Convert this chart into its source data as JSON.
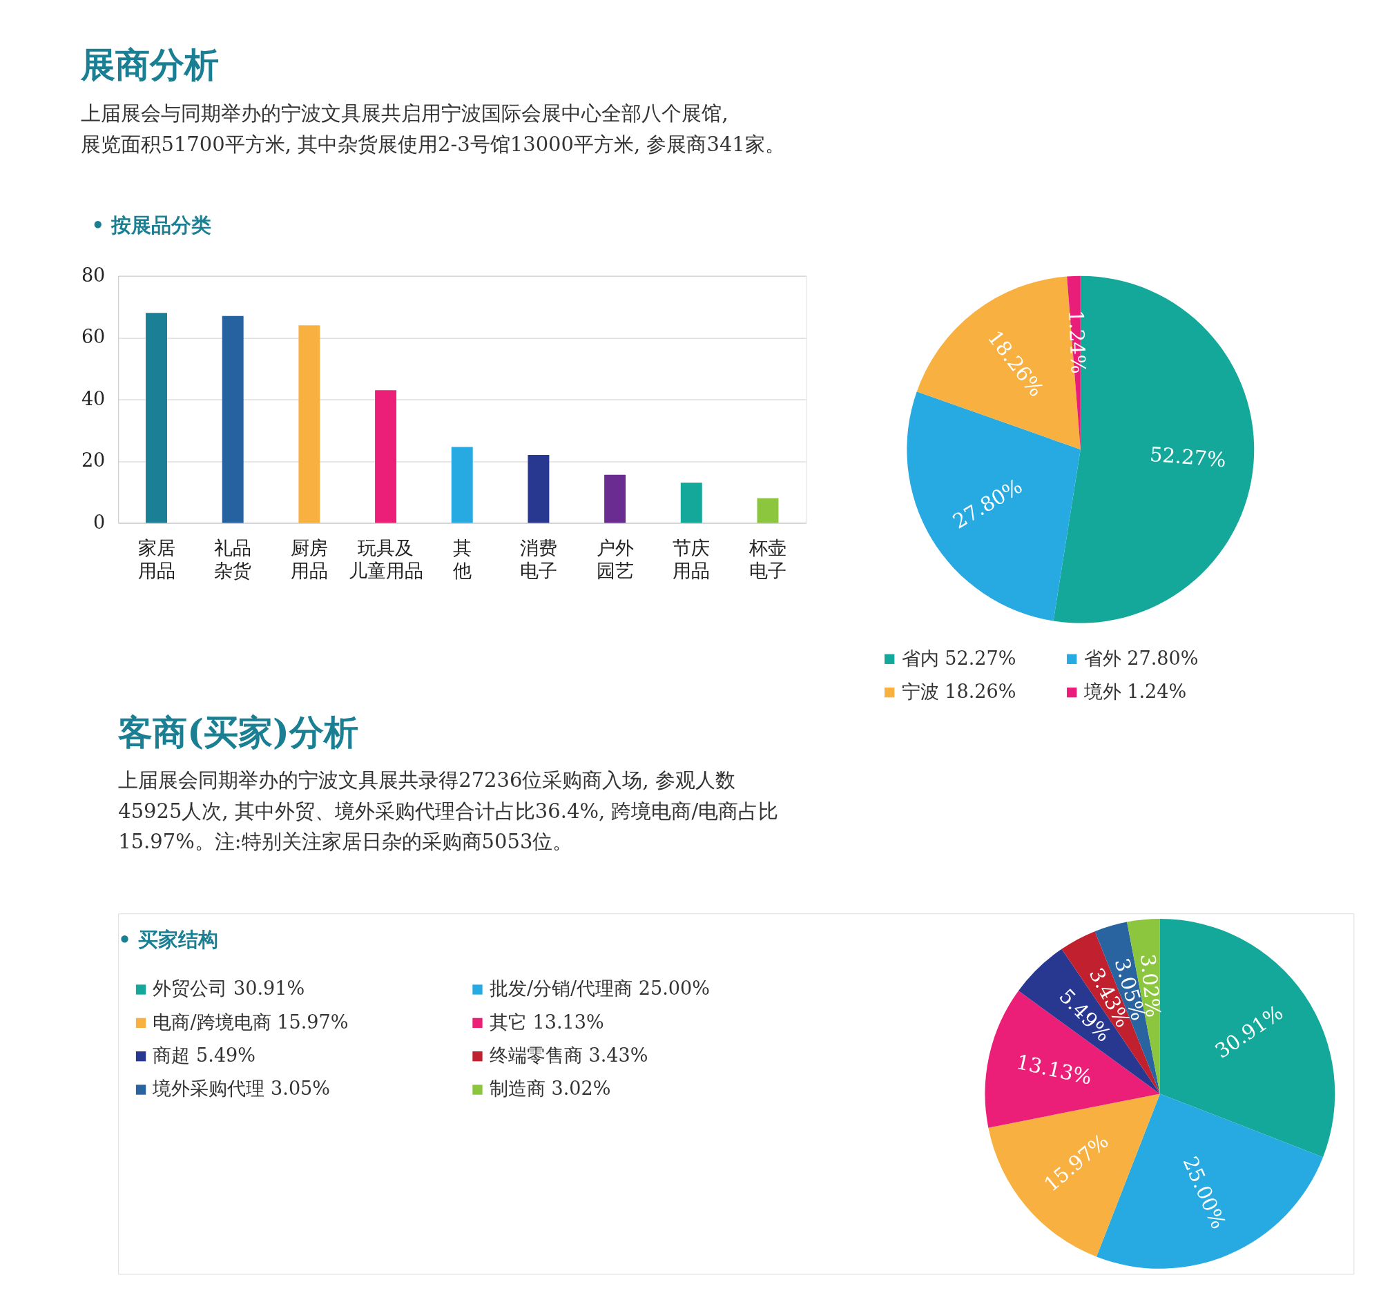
{
  "chart_data": [
    {
      "type": "bar",
      "title": "展商分析",
      "subtitle": "上届展会与同期举办的宁波文具展共启用宁波国际会展中心全部八个展馆,\n展览面积51700平方米, 其中杂货展使用2-3号馆13000平方米, 参展商341家。",
      "annotations": [
        "• 按展品分类"
      ],
      "categories": [
        "家居用品",
        "礼品杂货",
        "厨房用品",
        "玩具及儿童用品",
        "其他",
        "消费电子",
        "户外园艺",
        "节庆用品",
        "杯壶电子"
      ],
      "values": [
        68,
        67,
        64,
        43,
        24.6,
        22,
        15.6,
        13,
        8
      ],
      "colors": [
        "#1b7f95",
        "#2762a0",
        "#f8b040",
        "#ec1f78",
        "#27a9e1",
        "#283890",
        "#6a2c91",
        "#14a89a",
        "#8cc63f"
      ],
      "ylim": [
        0,
        80
      ],
      "yticks": [
        0,
        20,
        40,
        60,
        80
      ],
      "grid": "y"
    },
    {
      "type": "pie",
      "categories": [
        "省内",
        "省外",
        "宁波",
        "境外"
      ],
      "values": [
        52.27,
        27.8,
        18.26,
        1.24
      ],
      "value_labels": [
        "52.27%",
        "27.80%",
        "18.26%",
        "1.24%"
      ],
      "colors": [
        "#14a89a",
        "#27a9e1",
        "#f8b040",
        "#e91e7a"
      ],
      "legend": "bottom"
    },
    {
      "type": "pie",
      "title": "客商(买家)分析",
      "subtitle": "上届展会同期举办的宁波文具展共录得27236位采购商入场, 参观人数\n45925人次, 其中外贸、境外采购代理合计占比36.4%, 跨境电商/电商占比\n15.97%。注:特别关注家居日杂的采购商5053位。",
      "annotations": [
        "• 买家结构"
      ],
      "categories": [
        "外贸公司",
        "批发/分销/代理商",
        "电商/跨境电商",
        "其它",
        "商超",
        "终端零售商",
        "境外采购代理",
        "制造商"
      ],
      "values": [
        30.91,
        25.0,
        15.97,
        13.13,
        5.49,
        3.43,
        3.05,
        3.02
      ],
      "value_labels": [
        "30.91%",
        "25.00%",
        "15.97%",
        "13.13%",
        "5.49%",
        "3.43%",
        "3.05%",
        "3.02%"
      ],
      "colors": [
        "#14a89a",
        "#27a9e1",
        "#f8b040",
        "#ec1f78",
        "#283890",
        "#c1202f",
        "#2a64a0",
        "#8cc63f"
      ],
      "legend": "left"
    }
  ]
}
